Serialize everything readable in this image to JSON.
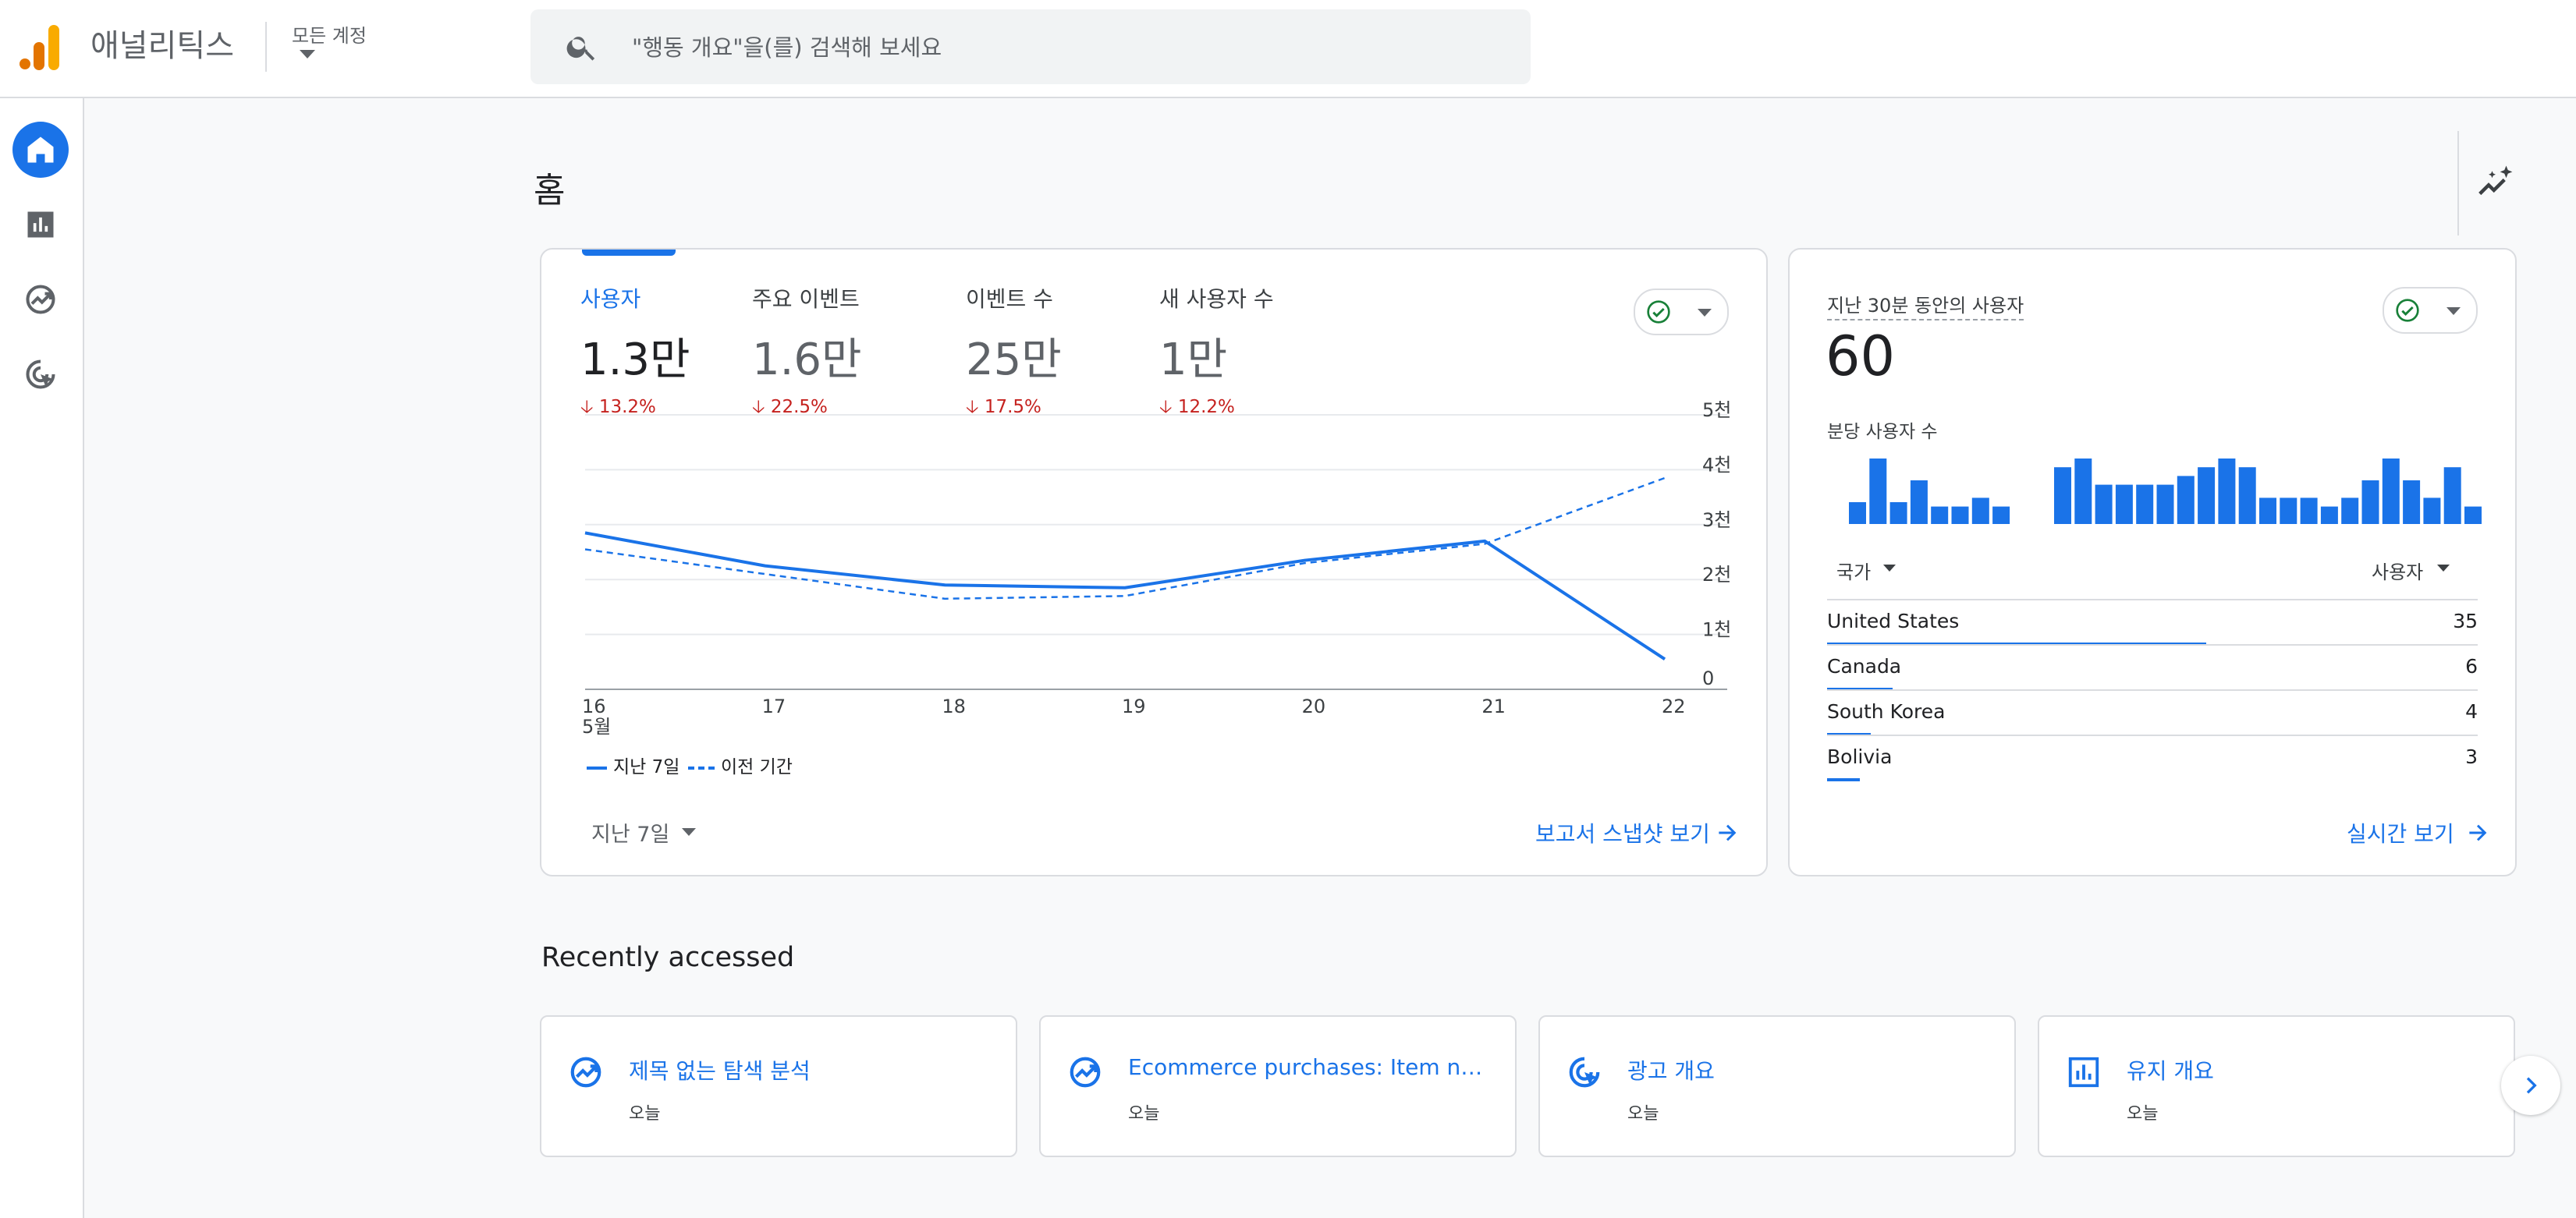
{
  "header": {
    "app_name": "애널리틱스",
    "account_label": "모든 계정",
    "search_placeholder": "\"행동 개요\"을(를) 검색해 보세요"
  },
  "sidebar": {
    "items": [
      {
        "name": "home",
        "icon": "home-icon",
        "active": true
      },
      {
        "name": "reports",
        "icon": "bar-chart-icon",
        "active": false
      },
      {
        "name": "explore",
        "icon": "explore-trend-icon",
        "active": false
      },
      {
        "name": "advertising",
        "icon": "advertising-target-icon",
        "active": false
      }
    ]
  },
  "page": {
    "title": "홈"
  },
  "overview_card": {
    "metrics": [
      {
        "label": "사용자",
        "value": "1.3만",
        "change": "13.2%",
        "active": true
      },
      {
        "label": "주요 이벤트",
        "value": "1.6만",
        "change": "22.5%",
        "active": false
      },
      {
        "label": "이벤트 수",
        "value": "25만",
        "change": "17.5%",
        "active": false
      },
      {
        "label": "새 사용자 수",
        "value": "1만",
        "change": "12.2%",
        "active": false
      }
    ],
    "legend": {
      "current": "지난 7일",
      "previous": "이전 기간"
    },
    "date_range": "지난 7일",
    "link": "보고서 스냅샷 보기"
  },
  "chart_data": {
    "type": "line",
    "x": [
      "16",
      "17",
      "18",
      "19",
      "20",
      "21",
      "22"
    ],
    "x_sublabel": "5월",
    "y_ticks": [
      "0",
      "1천",
      "2천",
      "3천",
      "4천",
      "5천"
    ],
    "ylim": [
      0,
      5000
    ],
    "grid": true,
    "legend_position": "bottom-left",
    "series": [
      {
        "name": "지난 7일",
        "style": "solid",
        "color": "#1a73e8",
        "values": [
          2850,
          2250,
          1900,
          1850,
          2350,
          2700,
          550
        ]
      },
      {
        "name": "이전 기간",
        "style": "dashed",
        "color": "#1a73e8",
        "values": [
          2550,
          2100,
          1650,
          1700,
          2300,
          2650,
          3850
        ]
      }
    ]
  },
  "realtime_card": {
    "title": "지난 30분 동안의 사용자",
    "value": "60",
    "per_minute_label": "분당 사용자 수",
    "per_minute_values": [
      1,
      3,
      1,
      2,
      0.8,
      0.8,
      1.2,
      0.8,
      0,
      0,
      2.6,
      3,
      1.8,
      1.8,
      1.8,
      1.8,
      2.2,
      2.6,
      3,
      2.6,
      1.2,
      1.2,
      1.2,
      0.8,
      1.2,
      2,
      3,
      2,
      1.2,
      2.6,
      0.8
    ],
    "column_country": "국가",
    "column_users": "사용자",
    "rows": [
      {
        "country": "United States",
        "users": "35"
      },
      {
        "country": "Canada",
        "users": "6"
      },
      {
        "country": "South Korea",
        "users": "4"
      },
      {
        "country": "Bolivia",
        "users": "3"
      }
    ],
    "link": "실시간 보기"
  },
  "recent": {
    "title": "Recently accessed",
    "items": [
      {
        "name": "제목 없는 탐색 분석",
        "date": "오늘",
        "icon": "explore-trend-icon"
      },
      {
        "name": "Ecommerce purchases: Item na...",
        "date": "오늘",
        "icon": "explore-trend-icon"
      },
      {
        "name": "광고 개요",
        "date": "오늘",
        "icon": "advertising-target-icon"
      },
      {
        "name": "유지 개요",
        "date": "오늘",
        "icon": "bar-chart-icon"
      }
    ]
  },
  "colors": {
    "accent": "#1a73e8",
    "negative": "#c5221f",
    "positive_check": "#188038",
    "logo_orange": "#f9ab00",
    "logo_dark_orange": "#e37400"
  }
}
